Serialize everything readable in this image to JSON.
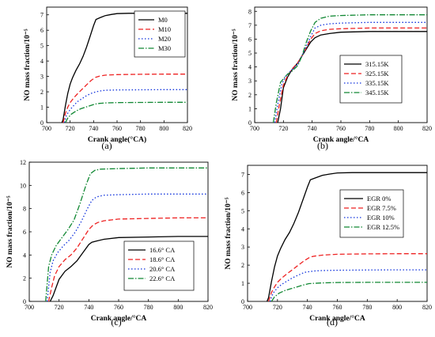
{
  "chart_data": [
    {
      "type": "line",
      "panel_label": "(a)",
      "xlabel": "Crank angle(°CA)",
      "ylabel": "NO mass fraction/10⁻⁵",
      "xlim": [
        700,
        820
      ],
      "ylim": [
        0,
        7.5
      ],
      "xticks": [
        "700",
        "720",
        "740",
        "760",
        "780",
        "800",
        "820"
      ],
      "yticks": [
        "0",
        "1",
        "2",
        "3",
        "4",
        "5",
        "6",
        "7"
      ],
      "legend_position": "top-right",
      "series": [
        {
          "name": "M0",
          "color": "#000000",
          "dash": "solid",
          "x": [
            713,
            714,
            716,
            718,
            720,
            722,
            725,
            728,
            731,
            734,
            737,
            740,
            742,
            745,
            750,
            755,
            760,
            770,
            780,
            800,
            820
          ],
          "y": [
            0,
            0.2,
            1.1,
            1.9,
            2.5,
            2.9,
            3.4,
            3.8,
            4.3,
            4.9,
            5.6,
            6.3,
            6.7,
            6.8,
            6.95,
            7.02,
            7.08,
            7.1,
            7.1,
            7.1,
            7.1
          ]
        },
        {
          "name": "M10",
          "color": "#ee2222",
          "dash": "6,3",
          "x": [
            714,
            716,
            718,
            720,
            723,
            726,
            730,
            734,
            738,
            742,
            745,
            750,
            760,
            780,
            800,
            820
          ],
          "y": [
            0,
            0.6,
            1.0,
            1.3,
            1.6,
            1.85,
            2.15,
            2.45,
            2.75,
            2.95,
            3.02,
            3.08,
            3.12,
            3.14,
            3.15,
            3.15
          ]
        },
        {
          "name": "M20",
          "color": "#1133dd",
          "dash": "1.5,2.5",
          "x": [
            715,
            717,
            720,
            723,
            726,
            730,
            734,
            738,
            742,
            745,
            750,
            760,
            780,
            800,
            820
          ],
          "y": [
            0,
            0.5,
            0.85,
            1.1,
            1.35,
            1.55,
            1.75,
            1.9,
            2.0,
            2.05,
            2.1,
            2.12,
            2.13,
            2.14,
            2.14
          ]
        },
        {
          "name": "M30",
          "color": "#118833",
          "dash": "7,2,1.5,2",
          "x": [
            716,
            718,
            721,
            725,
            729,
            733,
            737,
            741,
            745,
            750,
            760,
            780,
            800,
            820
          ],
          "y": [
            0,
            0.3,
            0.55,
            0.75,
            0.9,
            1.0,
            1.1,
            1.2,
            1.25,
            1.28,
            1.3,
            1.31,
            1.32,
            1.32
          ]
        }
      ]
    },
    {
      "type": "line",
      "panel_label": "(b)",
      "xlabel": "Crank angle/°CA",
      "ylabel": "NO mass fraction/10⁻⁵",
      "xlim": [
        700,
        820
      ],
      "ylim": [
        0,
        8.3
      ],
      "xticks": [
        "700",
        "720",
        "740",
        "760",
        "780",
        "800",
        "820"
      ],
      "yticks": [
        "0",
        "1",
        "2",
        "3",
        "4",
        "5",
        "6",
        "7",
        "8"
      ],
      "legend_position": "bottom-right",
      "series": [
        {
          "name": "315.15K",
          "color": "#000000",
          "dash": "solid",
          "x": [
            716,
            718,
            720,
            723,
            726,
            730,
            733,
            736,
            739,
            742,
            746,
            752,
            760,
            780,
            800,
            820
          ],
          "y": [
            0,
            1.0,
            2.5,
            3.3,
            3.8,
            4.3,
            4.8,
            5.3,
            5.8,
            6.1,
            6.3,
            6.4,
            6.5,
            6.55,
            6.55,
            6.55
          ]
        },
        {
          "name": "325.15K",
          "color": "#ee2222",
          "dash": "6,3",
          "x": [
            715,
            717,
            720,
            723,
            726,
            730,
            733,
            736,
            739,
            742,
            746,
            752,
            760,
            780,
            800,
            820
          ],
          "y": [
            0,
            1.2,
            2.7,
            3.4,
            3.85,
            4.3,
            4.8,
            5.4,
            6.0,
            6.4,
            6.6,
            6.7,
            6.75,
            6.8,
            6.8,
            6.8
          ]
        },
        {
          "name": "335.15K",
          "color": "#1133dd",
          "dash": "1.5,2.5",
          "x": [
            714,
            716,
            719,
            722,
            726,
            730,
            733,
            736,
            739,
            742,
            746,
            752,
            760,
            780,
            800,
            820
          ],
          "y": [
            0,
            1.3,
            2.8,
            3.4,
            3.8,
            4.2,
            4.8,
            5.5,
            6.2,
            6.8,
            7.0,
            7.1,
            7.15,
            7.2,
            7.2,
            7.2
          ]
        },
        {
          "name": "345.15K",
          "color": "#118833",
          "dash": "7,2,1.5,2",
          "x": [
            713,
            715,
            718,
            722,
            726,
            730,
            733,
            736,
            739,
            742,
            746,
            752,
            760,
            780,
            800,
            820
          ],
          "y": [
            0,
            1.4,
            2.9,
            3.4,
            3.7,
            4.1,
            4.8,
            5.8,
            6.6,
            7.2,
            7.5,
            7.65,
            7.7,
            7.75,
            7.75,
            7.75
          ]
        }
      ]
    },
    {
      "type": "line",
      "panel_label": "(c)",
      "xlabel": "Crank angle/°CA",
      "ylabel": "NO mass fraction/10⁻⁵",
      "xlim": [
        700,
        820
      ],
      "ylim": [
        0,
        12
      ],
      "xticks": [
        "700",
        "720",
        "740",
        "760",
        "780",
        "800",
        "820"
      ],
      "yticks": [
        "0",
        "2",
        "4",
        "6",
        "8",
        "10",
        "12"
      ],
      "legend_position": "bottom-right",
      "series": [
        {
          "name": "16.6° CA",
          "color": "#000000",
          "dash": "solid",
          "x": [
            714,
            716,
            718,
            720,
            724,
            728,
            732,
            736,
            740,
            742,
            745,
            750,
            760,
            780,
            800,
            820
          ],
          "y": [
            0,
            0.5,
            1.2,
            1.9,
            2.6,
            3.0,
            3.5,
            4.2,
            4.9,
            5.1,
            5.2,
            5.35,
            5.5,
            5.55,
            5.6,
            5.6
          ]
        },
        {
          "name": "18.6° CA",
          "color": "#ee2222",
          "dash": "6,3",
          "x": [
            713,
            715,
            717,
            720,
            724,
            728,
            732,
            736,
            740,
            743,
            746,
            750,
            760,
            780,
            800,
            820
          ],
          "y": [
            0,
            1.2,
            2.2,
            3.0,
            3.6,
            4.0,
            4.6,
            5.4,
            6.2,
            6.6,
            6.8,
            6.95,
            7.1,
            7.15,
            7.2,
            7.2
          ]
        },
        {
          "name": "20.6° CA",
          "color": "#1133dd",
          "dash": "1.5,2.5",
          "x": [
            712,
            714,
            716,
            719,
            723,
            727,
            731,
            735,
            739,
            742,
            745,
            750,
            760,
            780,
            800,
            820
          ],
          "y": [
            0,
            2.5,
            3.5,
            4.2,
            4.8,
            5.3,
            6.0,
            6.9,
            8.0,
            8.7,
            9.0,
            9.15,
            9.2,
            9.25,
            9.25,
            9.25
          ]
        },
        {
          "name": "22.6° CA",
          "color": "#118833",
          "dash": "7,2,1.5,2",
          "x": [
            711,
            713,
            715,
            718,
            722,
            726,
            730,
            734,
            738,
            741,
            744,
            748,
            760,
            780,
            800,
            820
          ],
          "y": [
            0,
            3.0,
            4.0,
            4.8,
            5.5,
            6.2,
            7.0,
            8.4,
            10.0,
            11.0,
            11.3,
            11.4,
            11.45,
            11.5,
            11.5,
            11.5
          ]
        }
      ]
    },
    {
      "type": "line",
      "panel_label": "(d)",
      "xlabel": "Crank angle/°CA",
      "ylabel": "NO mass fraction/10⁻⁵",
      "xlim": [
        700,
        820
      ],
      "ylim": [
        0,
        7.5
      ],
      "xticks": [
        "700",
        "720",
        "740",
        "760",
        "780",
        "800",
        "820"
      ],
      "yticks": [
        "0",
        "1",
        "2",
        "3",
        "4",
        "5",
        "6",
        "7"
      ],
      "legend_position": "right",
      "series": [
        {
          "name": "EGR 0%",
          "color": "#000000",
          "dash": "solid",
          "x": [
            713,
            714,
            716,
            718,
            720,
            722,
            725,
            728,
            731,
            734,
            737,
            740,
            742,
            745,
            750,
            755,
            760,
            770,
            780,
            800,
            820
          ],
          "y": [
            0,
            0.2,
            1.1,
            1.9,
            2.5,
            2.9,
            3.4,
            3.8,
            4.3,
            4.9,
            5.6,
            6.3,
            6.7,
            6.8,
            6.95,
            7.02,
            7.08,
            7.1,
            7.1,
            7.1,
            7.1
          ]
        },
        {
          "name": "EGR 7.5%",
          "color": "#ee2222",
          "dash": "6,3",
          "x": [
            714,
            716,
            718,
            720,
            723,
            726,
            730,
            734,
            738,
            742,
            745,
            750,
            760,
            780,
            800,
            820
          ],
          "y": [
            0,
            0.5,
            0.8,
            1.05,
            1.3,
            1.5,
            1.75,
            2.0,
            2.25,
            2.45,
            2.5,
            2.55,
            2.6,
            2.62,
            2.63,
            2.63
          ]
        },
        {
          "name": "EGR 10%",
          "color": "#1133dd",
          "dash": "1.5,2.5",
          "x": [
            715,
            717,
            720,
            723,
            726,
            730,
            734,
            738,
            742,
            745,
            750,
            760,
            780,
            800,
            820
          ],
          "y": [
            0,
            0.45,
            0.75,
            0.95,
            1.1,
            1.3,
            1.45,
            1.6,
            1.65,
            1.68,
            1.7,
            1.72,
            1.73,
            1.74,
            1.74
          ]
        },
        {
          "name": "EGR 12.5%",
          "color": "#118833",
          "dash": "7,2,1.5,2",
          "x": [
            716,
            718,
            721,
            725,
            729,
            733,
            737,
            741,
            745,
            750,
            760,
            780,
            800,
            820
          ],
          "y": [
            0,
            0.25,
            0.45,
            0.6,
            0.7,
            0.8,
            0.9,
            0.98,
            1.0,
            1.02,
            1.04,
            1.05,
            1.05,
            1.05
          ]
        }
      ]
    }
  ]
}
